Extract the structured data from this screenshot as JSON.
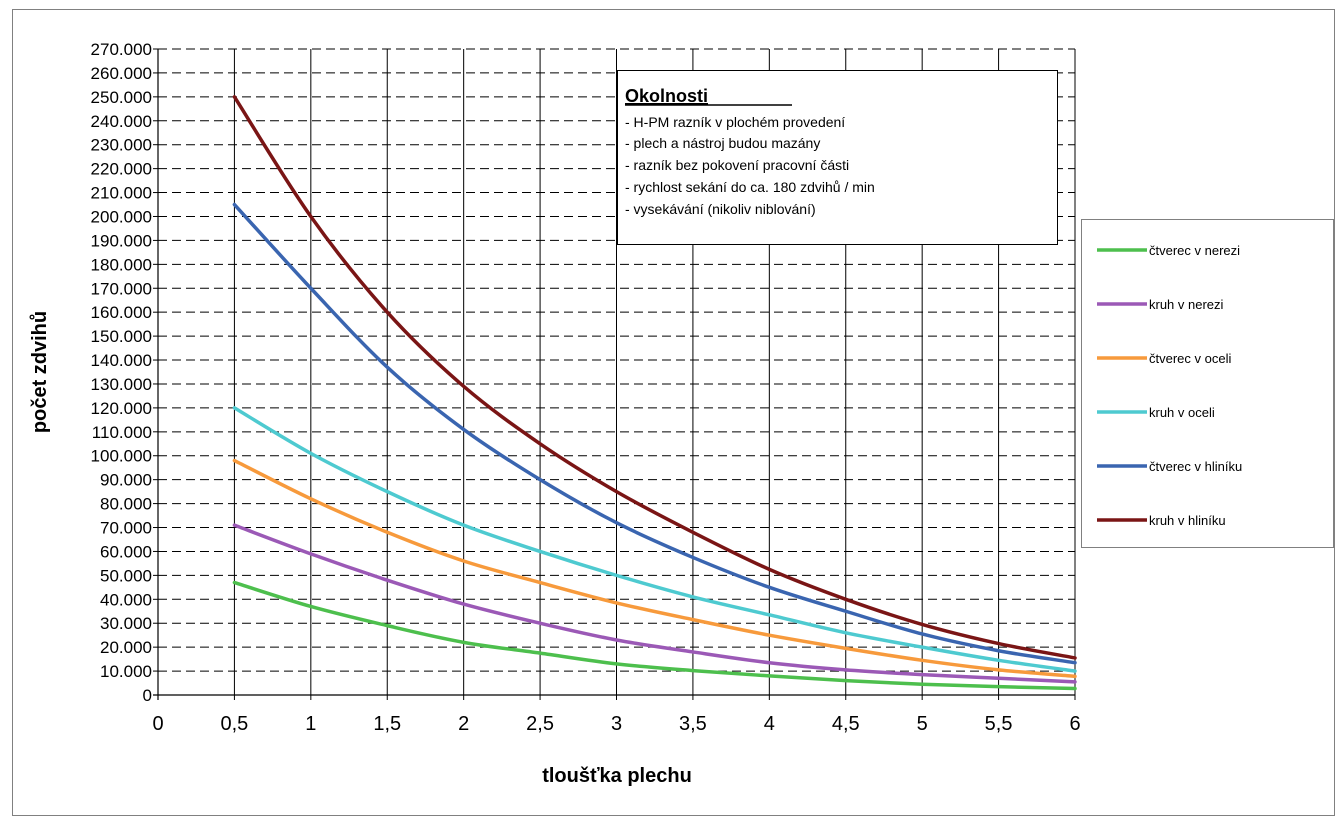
{
  "chart_data": {
    "type": "line",
    "x": [
      0.5,
      1,
      1.5,
      2,
      2.5,
      3,
      3.5,
      4,
      4.5,
      5,
      5.5,
      6
    ],
    "x_tick_labels": [
      "0",
      "0,5",
      "1",
      "1,5",
      "2",
      "2,5",
      "3",
      "3,5",
      "4",
      "4,5",
      "5",
      "5,5",
      "6"
    ],
    "y_tick_labels": [
      "0",
      "10.000",
      "20.000",
      "30.000",
      "40.000",
      "50.000",
      "60.000",
      "70.000",
      "80.000",
      "90.000",
      "100.000",
      "110.000",
      "120.000",
      "130.000",
      "140.000",
      "150.000",
      "160.000",
      "170.000",
      "180.000",
      "190.000",
      "200.000",
      "210.000",
      "220.000",
      "230.000",
      "240.000",
      "250.000",
      "260.000",
      "270.000"
    ],
    "xlim": [
      0,
      6
    ],
    "ylim": [
      0,
      270000
    ],
    "xlabel": "tloušťka plechu",
    "ylabel": "počet zdvihů",
    "grid": "horizontal dashed, vertical solid",
    "legend_position": "right",
    "series": [
      {
        "name": "čtverec v nerezi",
        "color": "#4dbf4d",
        "values": [
          47000,
          37000,
          29000,
          22000,
          17500,
          13000,
          10200,
          8000,
          6000,
          4500,
          3500,
          2700
        ]
      },
      {
        "name": "kruh v nerezi",
        "color": "#9b59b6",
        "values": [
          71000,
          59000,
          48000,
          38000,
          30000,
          23000,
          18000,
          13500,
          10500,
          8500,
          7000,
          5500
        ]
      },
      {
        "name": "čtverec v oceli",
        "color": "#f79a3c",
        "values": [
          98000,
          82000,
          68000,
          56000,
          47000,
          38500,
          31500,
          25000,
          19500,
          14500,
          10500,
          7800
        ]
      },
      {
        "name": "kruh v  oceli",
        "color": "#4ecad0",
        "values": [
          120000,
          101000,
          85000,
          71000,
          60000,
          50000,
          41000,
          33500,
          26000,
          20000,
          14500,
          10000
        ]
      },
      {
        "name": "čtverec v hliníku",
        "color": "#3a65b0",
        "values": [
          205000,
          170000,
          137000,
          111000,
          90000,
          72000,
          57500,
          45000,
          35000,
          25500,
          18500,
          13500
        ]
      },
      {
        "name": "kruh v hliníku",
        "color": "#7a1515",
        "values": [
          250000,
          200000,
          160000,
          129000,
          105000,
          85000,
          68000,
          52500,
          40000,
          29500,
          21500,
          15500
        ]
      }
    ]
  },
  "annotation": {
    "title": "Okolnosti",
    "lines": [
      "- H-PM razník v plochém provedení",
      "- plech a nástroj budou mazány",
      "- razník bez pokovení pracovní části",
      "- rychlost sekání  do ca. 180 zdvihů / min",
      "- vysekávání (nikoliv niblování)"
    ]
  }
}
